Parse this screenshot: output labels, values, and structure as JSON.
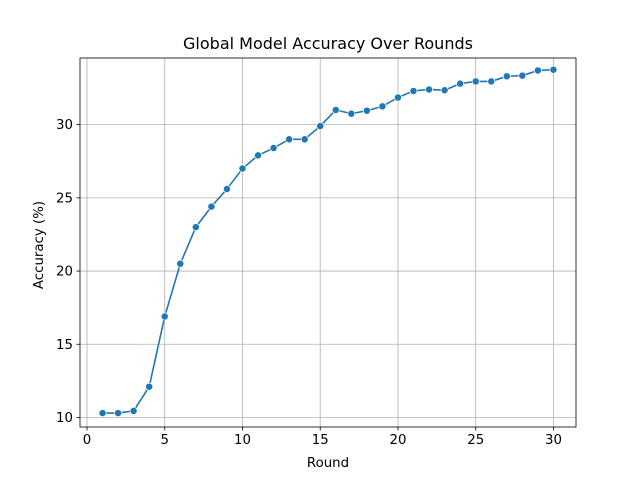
{
  "chart_data": {
    "type": "line",
    "title": "Global Model Accuracy Over Rounds",
    "xlabel": "Round",
    "ylabel": "Accuracy (%)",
    "xlim": [
      -0.45,
      31.45
    ],
    "ylim": [
      9.35,
      34.55
    ],
    "xticks": [
      0,
      5,
      10,
      15,
      20,
      25,
      30
    ],
    "yticks": [
      10,
      15,
      20,
      25,
      30
    ],
    "grid": true,
    "line_color": "#1f77b4",
    "marker": "circle",
    "series": [
      {
        "x": [
          1,
          2,
          3,
          4,
          5,
          6,
          7,
          8,
          9,
          10,
          11,
          12,
          13,
          14,
          15,
          16,
          17,
          18,
          19,
          20,
          21,
          22,
          23,
          24,
          25,
          26,
          27,
          28,
          29,
          30
        ],
        "values": [
          10.3,
          10.3,
          10.45,
          12.1,
          16.9,
          20.5,
          23.0,
          24.4,
          25.6,
          27.0,
          27.9,
          28.4,
          29.0,
          29.0,
          29.9,
          31.0,
          30.75,
          30.95,
          31.25,
          31.85,
          32.3,
          32.4,
          32.35,
          32.8,
          32.95,
          32.95,
          33.3,
          33.35,
          33.7,
          33.75
        ]
      }
    ]
  }
}
